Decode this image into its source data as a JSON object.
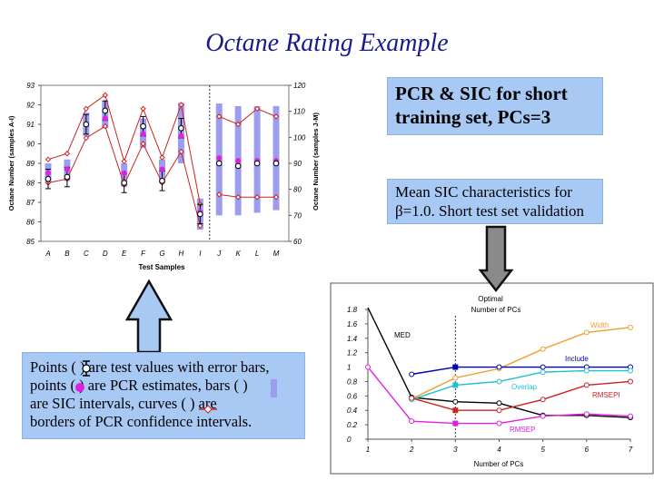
{
  "slide": {
    "title": "Octane Rating Example"
  },
  "boxes": {
    "pcr_title_line1": "PCR & SIC for short",
    "pcr_title_line2": "training set, PCs=3",
    "sic_line1": "Mean SIC characteristics for",
    "sic_line2": "β=1.0. Short test set validation",
    "legend_line1": "Points (   ) are test values with error bars,",
    "legend_line2": "points (   ) are PCR estimates, bars (   )",
    "legend_line3": "are SIC intervals, curves (      ) are",
    "legend_line4": "borders of PCR confidence intervals."
  },
  "colors": {
    "arrow_fill": "#a9c9f5",
    "bar_color": "#9d9df0",
    "border_curve": "#cc2222",
    "estimate_point": "#e020e0",
    "width": "#f0a030",
    "include": "#0000bb",
    "overlap": "#20c0d0",
    "rmsepi": "#cc2222",
    "rmsep": "#e020e0",
    "med": "#000000"
  },
  "chart_data": [
    {
      "type": "scatter",
      "categories": [
        "A",
        "B",
        "C",
        "D",
        "E",
        "F",
        "G",
        "H",
        "I",
        "J",
        "K",
        "L",
        "M"
      ],
      "xlabel": "Test Samples",
      "ylabel_left": "Octane Number (samples A-I)",
      "ylabel_right": "Octane Number (samples J-M)",
      "ylim_left": [
        85,
        93
      ],
      "ylim_right": [
        60,
        120
      ],
      "left_ticks": [
        85,
        86,
        87,
        88,
        89,
        90,
        91,
        92,
        93
      ],
      "right_ticks": [
        60,
        70,
        80,
        90,
        100,
        110,
        120
      ],
      "left_group": {
        "test_values": [
          88.2,
          88.3,
          91.0,
          91.7,
          88.0,
          90.9,
          88.1,
          90.8,
          86.4
        ],
        "error": [
          0.5,
          0.5,
          0.5,
          0.5,
          0.5,
          0.5,
          0.5,
          0.5,
          0.5
        ],
        "pcr_estimates": [
          88.5,
          88.7,
          91.0,
          91.3,
          88.5,
          90.5,
          88.7,
          90.4,
          86.5
        ],
        "sic_low": [
          88.0,
          88.1,
          90.4,
          90.8,
          87.8,
          89.8,
          88.0,
          89.0,
          85.6
        ],
        "sic_high": [
          89.0,
          89.2,
          91.6,
          92.2,
          89.0,
          91.3,
          89.2,
          92.1,
          87.2
        ],
        "upper_border": [
          89.2,
          89.5,
          91.8,
          92.5,
          89.1,
          91.8,
          89.3,
          92.0,
          86.9
        ],
        "lower_border": [
          88.0,
          88.2,
          90.3,
          90.9,
          87.9,
          90.0,
          88.0,
          89.6,
          85.8
        ]
      },
      "right_group": {
        "test_values": [
          90,
          89,
          90,
          90
        ],
        "pcr_estimates": [
          92,
          91,
          91,
          91
        ],
        "sic_low": [
          70,
          70,
          71,
          72
        ],
        "sic_high": [
          113,
          112,
          112,
          112
        ],
        "upper_border": [
          108,
          105,
          111,
          108
        ],
        "lower_border": [
          78,
          77,
          77,
          77
        ]
      }
    },
    {
      "type": "line",
      "title_line1": "Optimal",
      "title_line2": "Number of PCs",
      "xlabel": "Number of PCs",
      "x": [
        1,
        2,
        3,
        4,
        5,
        6,
        7
      ],
      "ylim": [
        0,
        1.8
      ],
      "y_ticks": [
        0,
        0.2,
        0.4,
        0.6,
        0.8,
        1,
        1.2,
        1.4,
        1.6,
        1.8
      ],
      "optimal_pcs": 3,
      "series": [
        {
          "name": "MED",
          "values": [
            1.9,
            0.58,
            0.52,
            0.5,
            0.33,
            0.33,
            0.3
          ]
        },
        {
          "name": "Width",
          "values": [
            null,
            0.56,
            0.85,
            0.98,
            1.25,
            1.48,
            1.55
          ]
        },
        {
          "name": "Include",
          "values": [
            null,
            0.9,
            1.0,
            1.0,
            1.0,
            1.0,
            1.0
          ]
        },
        {
          "name": "Overlap",
          "values": [
            null,
            0.55,
            0.75,
            0.8,
            0.93,
            0.95,
            0.95
          ]
        },
        {
          "name": "RMSEPI",
          "values": [
            null,
            0.57,
            0.4,
            0.4,
            0.55,
            0.75,
            0.8
          ]
        },
        {
          "name": "RMSEP",
          "values": [
            1.0,
            0.25,
            0.22,
            0.22,
            0.32,
            0.35,
            0.32
          ]
        }
      ]
    }
  ]
}
